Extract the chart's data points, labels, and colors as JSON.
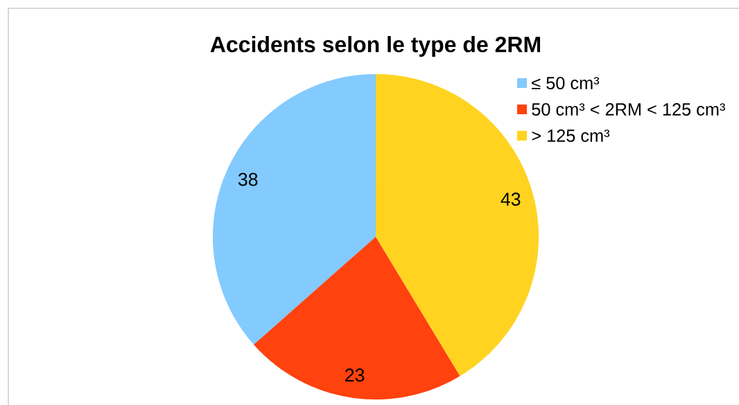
{
  "chart_data": {
    "type": "pie",
    "title": "Accidents selon le type de 2RM",
    "categories": [
      "≤ 50 cm³",
      "50 cm³ < 2RM < 125 cm³",
      "> 125 cm³"
    ],
    "values": [
      38,
      23,
      43
    ],
    "colors": [
      "#83caff",
      "#ff420e",
      "#ffd320"
    ],
    "data_labels": true,
    "legend": "top right"
  }
}
